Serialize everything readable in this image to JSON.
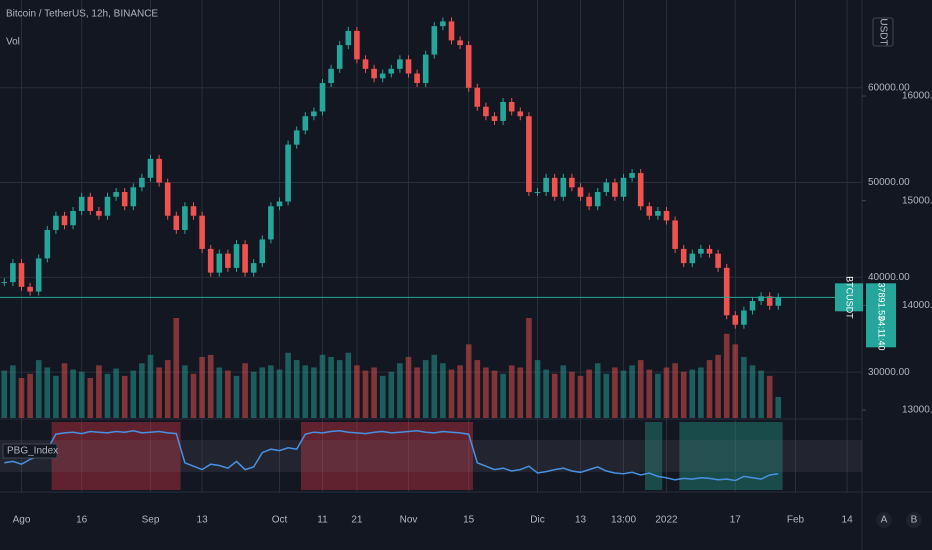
{
  "chart_data": {
    "type": "candlestick",
    "title": "Bitcoin / TetherUS, 12h, BINANCE",
    "volume_label": "Vol",
    "indicator_label": "PBG_Index",
    "currency_button": "USDT",
    "corner_buttons": [
      "A",
      "B"
    ],
    "up_color": "#26a69a",
    "down_color": "#ef5350",
    "indicator_color": "#4a90e2",
    "categories": [
      null,
      null,
      "Ago",
      null,
      null,
      null,
      null,
      null,
      null,
      "16",
      null,
      null,
      null,
      null,
      null,
      null,
      null,
      "Sep",
      null,
      null,
      null,
      null,
      null,
      "13",
      null,
      null,
      null,
      null,
      null,
      null,
      null,
      null,
      "Oct",
      null,
      null,
      null,
      null,
      "11",
      null,
      null,
      null,
      "21",
      null,
      null,
      null,
      null,
      null,
      "Nov",
      null,
      null,
      null,
      null,
      null,
      null,
      "15",
      null,
      null,
      null,
      null,
      null,
      null,
      null,
      "Dic",
      null,
      null,
      null,
      null,
      "13",
      null,
      null,
      null,
      null,
      "13:00",
      null,
      null,
      null,
      null,
      "2022",
      null,
      null,
      null,
      null,
      null,
      null,
      null,
      "17",
      null,
      null,
      null,
      null,
      null,
      null,
      "Feb",
      null,
      null,
      null,
      null,
      null,
      "14",
      null
    ],
    "values": [
      39500,
      41500,
      39000,
      38500,
      42000,
      45000,
      46500,
      45500,
      47000,
      48500,
      47000,
      46500,
      48500,
      49000,
      47500,
      49500,
      50500,
      52500,
      50000,
      46500,
      45000,
      47500,
      46500,
      43000,
      40500,
      42500,
      41000,
      43500,
      40500,
      41500,
      44000,
      47500,
      48000,
      54000,
      55500,
      57000,
      57500,
      60500,
      62000,
      64500,
      66000,
      63000,
      62000,
      61000,
      61500,
      62000,
      63000,
      61500,
      60500,
      63500,
      66500,
      67000,
      65000,
      64500,
      60000,
      58000,
      57000,
      56500,
      58500,
      57500,
      57000,
      49000,
      49000,
      50500,
      48500,
      50500,
      49500,
      48500,
      47500,
      49000,
      50000,
      48500,
      50500,
      51000,
      47500,
      46500,
      47000,
      46000,
      43000,
      41500,
      42500,
      43000,
      42500,
      41000,
      36000,
      35000,
      36500,
      37500,
      38000,
      37000,
      37891.53,
      null,
      null,
      null,
      null,
      null,
      null,
      null,
      null,
      null
    ],
    "volume": [
      45,
      50,
      38,
      42,
      55,
      48,
      40,
      52,
      46,
      44,
      38,
      50,
      42,
      47,
      40,
      45,
      52,
      60,
      48,
      55,
      95,
      50,
      42,
      58,
      60,
      48,
      45,
      40,
      52,
      44,
      48,
      50,
      46,
      62,
      55,
      50,
      48,
      60,
      58,
      55,
      62,
      50,
      45,
      48,
      40,
      44,
      52,
      58,
      48,
      55,
      60,
      52,
      46,
      50,
      70,
      55,
      48,
      45,
      42,
      50,
      48,
      95,
      55,
      46,
      42,
      50,
      44,
      40,
      46,
      52,
      42,
      48,
      45,
      50,
      55,
      46,
      42,
      48,
      52,
      44,
      46,
      48,
      55,
      60,
      80,
      70,
      58,
      50,
      45,
      40,
      20,
      null,
      null,
      null,
      null,
      null,
      null,
      null,
      null,
      null
    ],
    "indicator": [
      40,
      42,
      38,
      45,
      50,
      60,
      82,
      84,
      85,
      83,
      86,
      85,
      84,
      86,
      85,
      87,
      84,
      85,
      86,
      84,
      83,
      40,
      35,
      30,
      38,
      36,
      32,
      42,
      30,
      34,
      55,
      60,
      58,
      62,
      60,
      82,
      85,
      84,
      86,
      87,
      85,
      84,
      83,
      85,
      86,
      84,
      85,
      86,
      87,
      85,
      84,
      86,
      85,
      84,
      82,
      40,
      35,
      30,
      32,
      28,
      30,
      35,
      25,
      27,
      30,
      32,
      28,
      26,
      30,
      34,
      28,
      25,
      24,
      26,
      22,
      25,
      20,
      18,
      15,
      17,
      16,
      18,
      17,
      15,
      16,
      14,
      20,
      18,
      16,
      22,
      24,
      null,
      null,
      null,
      null,
      null,
      null,
      null,
      null,
      null
    ],
    "indicator_ylim": [
      0,
      100
    ],
    "zones": [
      {
        "from": 6,
        "to": 20,
        "color": "#f23645"
      },
      {
        "from": 35,
        "to": 44,
        "color": "#f23645"
      },
      {
        "from": 45,
        "to": 54,
        "color": "#f23645"
      },
      {
        "from": 75,
        "to": 76,
        "color": "#22ab94"
      },
      {
        "from": 79,
        "to": 90,
        "color": "#22ab94"
      }
    ],
    "ylim": [
      25160,
      69260
    ],
    "yticks": [
      {
        "value": 30000,
        "label": "30000.00"
      },
      {
        "value": 40000,
        "label": "40000.00"
      },
      {
        "value": 50000,
        "label": "50000.00"
      },
      {
        "value": 60000,
        "label": "60000.00"
      }
    ],
    "y2lim": [
      12924,
      16917
    ],
    "y2ticks": [
      {
        "value": 13000,
        "label": "13000.00"
      },
      {
        "value": 14000,
        "label": "14000.00"
      },
      {
        "value": 15000,
        "label": "15000.00"
      },
      {
        "value": 16000,
        "label": "16000.00"
      }
    ],
    "last_price": {
      "symbol": "BTCUSDT",
      "value": 37891.53,
      "countdown": "04:11:40"
    },
    "grid": true
  }
}
